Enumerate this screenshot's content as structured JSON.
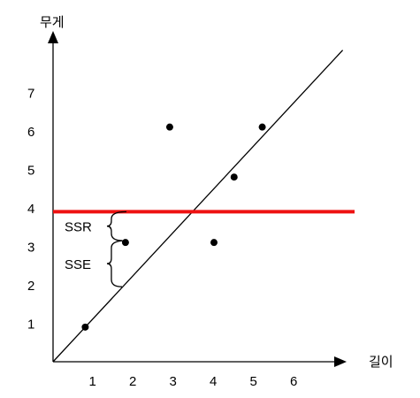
{
  "chart_data": {
    "type": "scatter",
    "xlabel": "길이",
    "ylabel": "무게",
    "x_ticks": [
      "1",
      "2",
      "3",
      "4",
      "5",
      "6"
    ],
    "y_ticks": [
      "1",
      "2",
      "3",
      "4",
      "5",
      "6",
      "7"
    ],
    "xlim": [
      0,
      7.2
    ],
    "ylim": [
      0,
      8.2
    ],
    "points": [
      {
        "x": 0.8,
        "y": 0.9
      },
      {
        "x": 1.8,
        "y": 3.1
      },
      {
        "x": 2.9,
        "y": 6.1
      },
      {
        "x": 4.0,
        "y": 3.1
      },
      {
        "x": 4.5,
        "y": 4.8
      },
      {
        "x": 5.2,
        "y": 6.1
      }
    ],
    "regression_line": {
      "x": [
        0,
        7.2
      ],
      "y": [
        0,
        8.1
      ],
      "color": "#000000"
    },
    "mean_line": {
      "y": 3.9,
      "color": "#ee1111"
    },
    "annotations": [
      {
        "text": "SSR",
        "x": 1.45,
        "y": 3.9,
        "y_end": 3.15
      },
      {
        "text": "SSE",
        "x": 1.45,
        "y": 3.15,
        "y_end": 1.95
      }
    ],
    "grid": false,
    "legend": "none"
  }
}
